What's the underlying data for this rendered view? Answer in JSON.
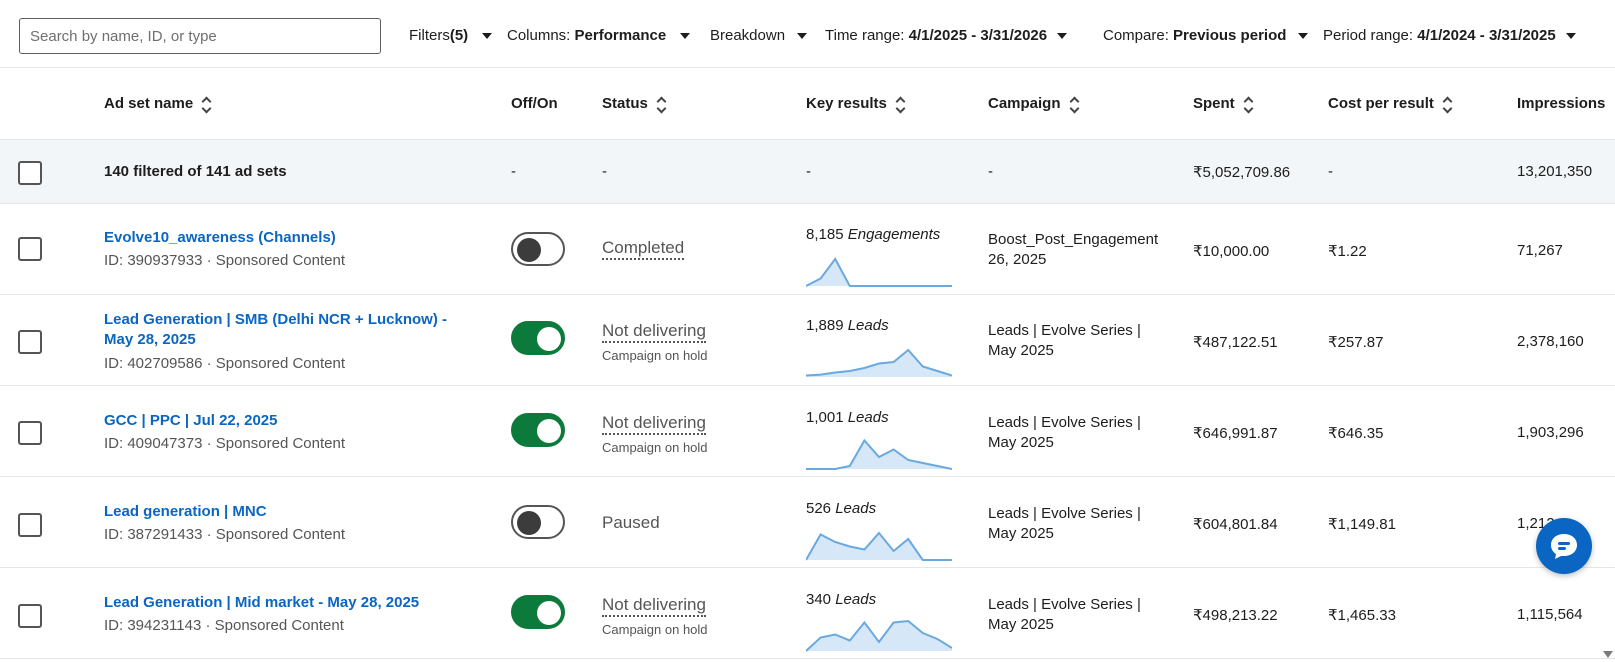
{
  "toolbar": {
    "search_placeholder": "Search by name, ID, or type",
    "filters_label": "Filters",
    "filters_count": "(5)",
    "columns_label": "Columns:",
    "columns_value": "Performance",
    "breakdown_label": "Breakdown",
    "time_range_label": "Time range:",
    "time_range_value": "4/1/2025 - 3/31/2026",
    "compare_label": "Compare:",
    "compare_value": "Previous period",
    "period_range_label": "Period range:",
    "period_range_value": "4/1/2024 - 3/31/2025"
  },
  "columns": {
    "ad_set_name": "Ad set name",
    "off_on": "Off/On",
    "status": "Status",
    "key_results": "Key results",
    "campaign": "Campaign",
    "spent": "Spent",
    "cost_per_result": "Cost per result",
    "impressions": "Impressions"
  },
  "summary": {
    "label": "140 filtered of 141 ad sets",
    "off_on": "-",
    "status": "-",
    "key_results": "-",
    "campaign": "-",
    "spent": "₹5,052,709.86",
    "cost_per_result": "-",
    "impressions": "13,201,350"
  },
  "rows": [
    {
      "name": "Evolve10_awareness (Channels)",
      "meta": "ID: 390937933 · Sponsored Content",
      "toggle_on": false,
      "status": "Completed",
      "status_sub": "",
      "kr_value": "8,185",
      "kr_unit": "Engagements",
      "campaign": "Boost_Post_Engagement 26, 2025",
      "spent": "₹10,000.00",
      "cost_per_result": "₹1.22",
      "impressions": "71,267",
      "spark": [
        0,
        0.25,
        0.9,
        0,
        0,
        0,
        0,
        0,
        0,
        0,
        0
      ]
    },
    {
      "name": "Lead Generation | SMB (Delhi NCR + Lucknow) - May 28, 2025",
      "meta": "ID: 402709586 · Sponsored Content",
      "toggle_on": true,
      "status": "Not delivering",
      "status_sub": "Campaign on hold",
      "kr_value": "1,889",
      "kr_unit": "Leads",
      "campaign": "Leads | Evolve Series | May 2025",
      "spent": "₹487,122.51",
      "cost_per_result": "₹257.87",
      "impressions": "2,378,160",
      "spark": [
        0.05,
        0.08,
        0.15,
        0.2,
        0.3,
        0.45,
        0.5,
        0.9,
        0.35,
        0.2,
        0.05
      ]
    },
    {
      "name": "GCC | PPC | Jul 22, 2025",
      "meta": "ID: 409047373 · Sponsored Content",
      "toggle_on": true,
      "status": "Not delivering",
      "status_sub": "Campaign on hold",
      "kr_value": "1,001",
      "kr_unit": "Leads",
      "campaign": "Leads | Evolve Series | May 2025",
      "spent": "₹646,991.87",
      "cost_per_result": "₹646.35",
      "impressions": "1,903,296",
      "spark": [
        0,
        0,
        0,
        0.1,
        0.95,
        0.4,
        0.65,
        0.3,
        0.2,
        0.1,
        0
      ]
    },
    {
      "name": "Lead generation | MNC",
      "meta": "ID: 387291433 · Sponsored Content",
      "toggle_on": false,
      "status": "Paused",
      "status_sub": "",
      "kr_value": "526",
      "kr_unit": "Leads",
      "campaign": "Leads | Evolve Series | May 2025",
      "spent": "₹604,801.84",
      "cost_per_result": "₹1,149.81",
      "impressions": "1,212,",
      "spark": [
        0,
        0.85,
        0.6,
        0.45,
        0.35,
        0.9,
        0.3,
        0.7,
        0,
        0,
        0
      ]
    },
    {
      "name": "Lead Generation | Mid market - May 28, 2025",
      "meta": "ID: 394231143 · Sponsored Content",
      "toggle_on": true,
      "status": "Not delivering",
      "status_sub": "Campaign on hold",
      "kr_value": "340",
      "kr_unit": "Leads",
      "campaign": "Leads | Evolve Series | May 2025",
      "spent": "₹498,213.22",
      "cost_per_result": "₹1,465.33",
      "impressions": "1,115,564",
      "spark": [
        0,
        0.45,
        0.55,
        0.35,
        0.95,
        0.3,
        0.95,
        1.0,
        0.6,
        0.4,
        0.1
      ]
    }
  ],
  "colors": {
    "link": "#0a66c2",
    "toggle_on": "#0b7a3a",
    "spark_line": "#6aa9e0",
    "spark_fill": "#d6e8f8"
  },
  "icons": {
    "chat": "chat-bubble-icon",
    "sort": "sort-chevrons-icon",
    "dropdown": "caret-down-icon"
  }
}
